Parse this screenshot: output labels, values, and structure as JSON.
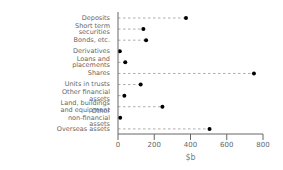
{
  "chart_data": {
    "type": "lollipop",
    "orientation": "horizontal",
    "categories": [
      "Deposits",
      "Short term securities",
      "Bonds, etc.",
      "Derivatives",
      "Loans and placements",
      "Shares",
      "Units in trusts",
      "Other financial assets",
      "Land, buildings and equipment",
      "Other non-financial assets",
      "Overseas assets"
    ],
    "values": [
      375,
      140,
      155,
      10,
      40,
      750,
      125,
      35,
      245,
      12,
      505
    ],
    "color": "#000000",
    "marker": "circle",
    "line_style": "dashed",
    "xlabel": "$b",
    "xlim": [
      0,
      800
    ],
    "xticks": [
      0,
      200,
      400,
      600,
      800
    ],
    "grid": false
  }
}
